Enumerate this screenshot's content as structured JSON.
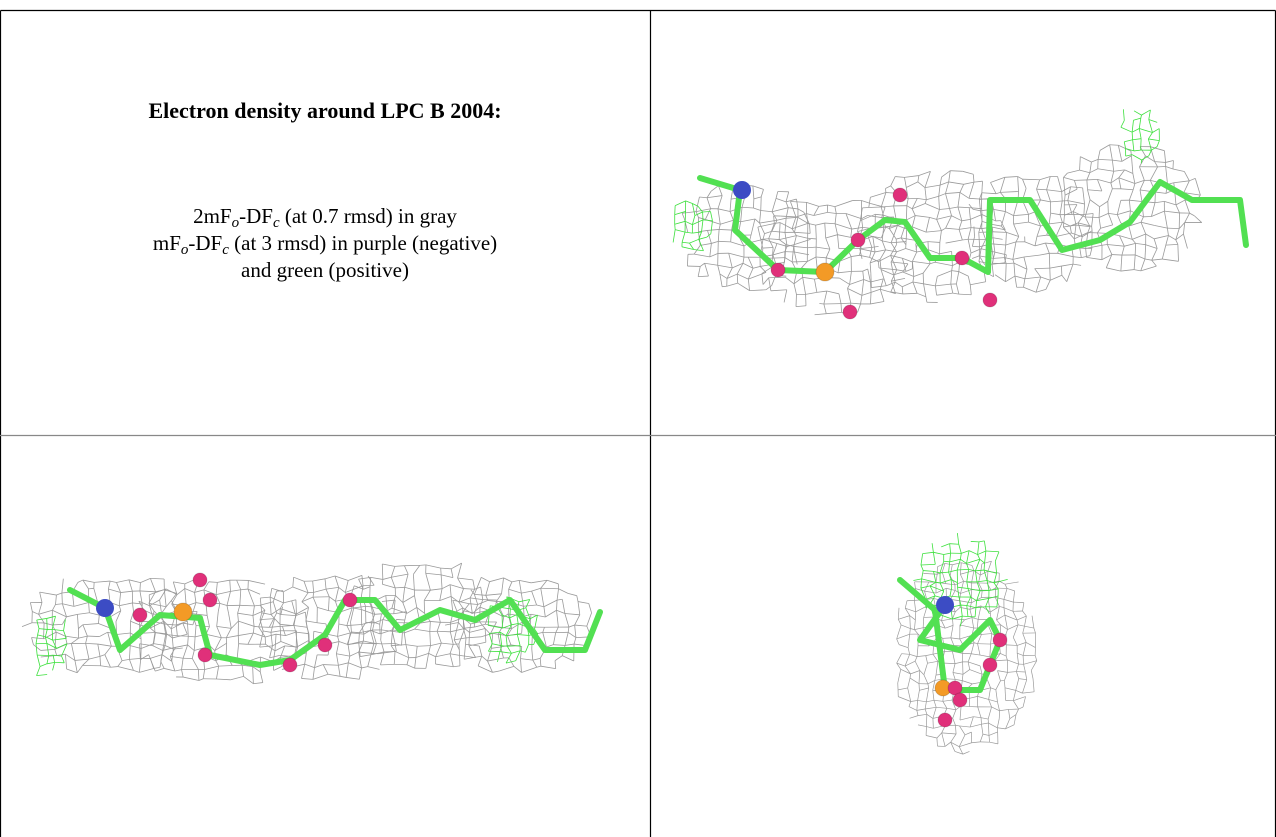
{
  "caption": {
    "title": "Electron density around LPC B 2004:",
    "lines": [
      [
        {
          "text": "2mF"
        },
        {
          "text": "o",
          "sub": true
        },
        {
          "text": "-DF"
        },
        {
          "text": "c",
          "sub": true
        },
        {
          "text": " (at 0.7 rmsd) in gray"
        }
      ],
      [
        {
          "text": "mF"
        },
        {
          "text": "o",
          "sub": true
        },
        {
          "text": "-DF"
        },
        {
          "text": "c",
          "sub": true
        },
        {
          "text": " (at 3 rmsd) in purple (negative)"
        }
      ],
      [
        {
          "text": "and green (positive)"
        }
      ]
    ]
  }
}
